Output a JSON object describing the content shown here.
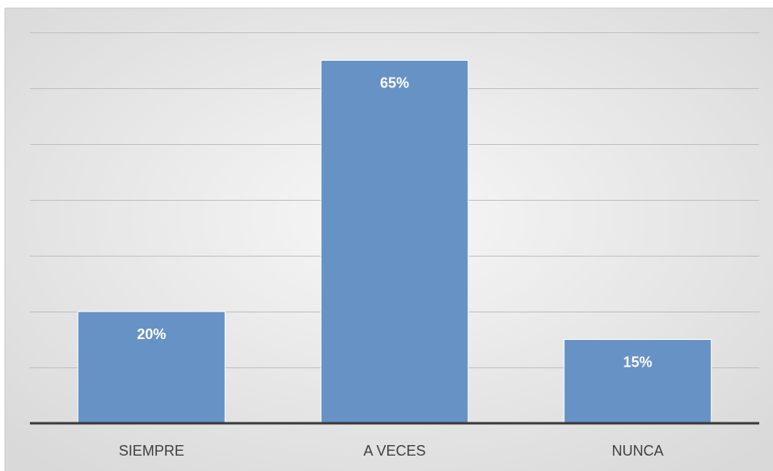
{
  "chart_data": {
    "type": "bar",
    "categories": [
      "SIEMPRE",
      "A VECES",
      "NUNCA"
    ],
    "values": [
      20,
      65,
      15
    ],
    "data_labels": [
      "20%",
      "65%",
      "15%"
    ],
    "title": "",
    "xlabel": "",
    "ylabel": "",
    "ylim": [
      0,
      70
    ],
    "grid": true,
    "y_tick_labels_shown": false,
    "bar_color": "#6792c5",
    "bar_edge_color": "#ffffff",
    "label_color": "#ffffff",
    "category_label_color": "#404040",
    "gridline_color": "#bfbfbf",
    "axis_line_color": "#3a3a3a",
    "plot_background_center": "#f7f7f7",
    "plot_background_edge": "#d9d9d9"
  }
}
